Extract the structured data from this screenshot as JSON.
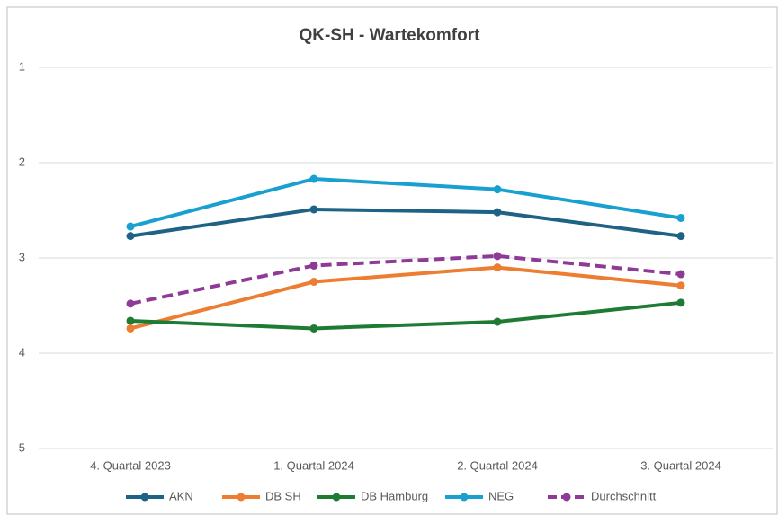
{
  "chart_data": {
    "type": "line",
    "title": "QK-SH - Wartekomfort",
    "categories": [
      "4. Quartal 2023",
      "1. Quartal 2024",
      "2. Quartal 2024",
      "3. Quartal 2024"
    ],
    "series": [
      {
        "name": "AKN",
        "color": "#1e6385",
        "values": [
          2.77,
          2.49,
          2.52,
          2.77
        ]
      },
      {
        "name": "DB SH",
        "color": "#ed7d31",
        "values": [
          3.74,
          3.25,
          3.1,
          3.29
        ]
      },
      {
        "name": "DB Hamburg",
        "color": "#1e7b34",
        "values": [
          3.66,
          3.74,
          3.67,
          3.47
        ]
      },
      {
        "name": "NEG",
        "color": "#18a0d0",
        "values": [
          2.67,
          2.17,
          2.28,
          2.58
        ]
      },
      {
        "name": "Durchschnitt",
        "color": "#8e3a96",
        "dashed": true,
        "values": [
          3.48,
          3.08,
          2.98,
          3.17
        ]
      }
    ],
    "ylim": [
      1,
      5
    ],
    "y_reversed": true,
    "yticks": [
      1,
      2,
      3,
      4,
      5
    ],
    "grid": true,
    "legend": "bottom"
  }
}
